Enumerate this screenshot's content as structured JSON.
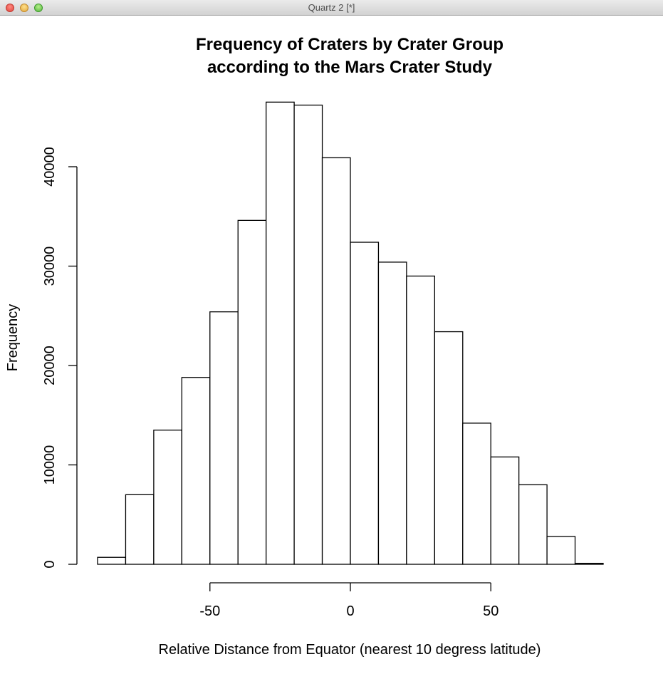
{
  "window": {
    "title": "Quartz 2 [*]"
  },
  "chart_data": {
    "type": "histogram",
    "title": [
      "Frequency of Craters by Crater Group",
      "according to the Mars Crater Study"
    ],
    "xlabel": "Relative Distance from Equator (nearest 10 degress latitude)",
    "ylabel": "Frequency",
    "xlim": [
      -90,
      90
    ],
    "ylim": [
      0,
      47000
    ],
    "bin_edges": [
      -90,
      -80,
      -70,
      -60,
      -50,
      -40,
      -30,
      -20,
      -10,
      0,
      10,
      20,
      30,
      40,
      50,
      60,
      70,
      80,
      90
    ],
    "values": [
      700,
      7000,
      13500,
      18800,
      25400,
      34600,
      46500,
      46200,
      40900,
      32400,
      30400,
      29000,
      23400,
      14200,
      10800,
      8000,
      2800,
      100
    ],
    "x_ticks": [
      -50,
      0,
      50
    ],
    "y_ticks": [
      0,
      10000,
      20000,
      30000,
      40000
    ],
    "grid": false,
    "legend": "none",
    "bar_fill": "#ffffff",
    "bar_stroke": "#000000"
  }
}
